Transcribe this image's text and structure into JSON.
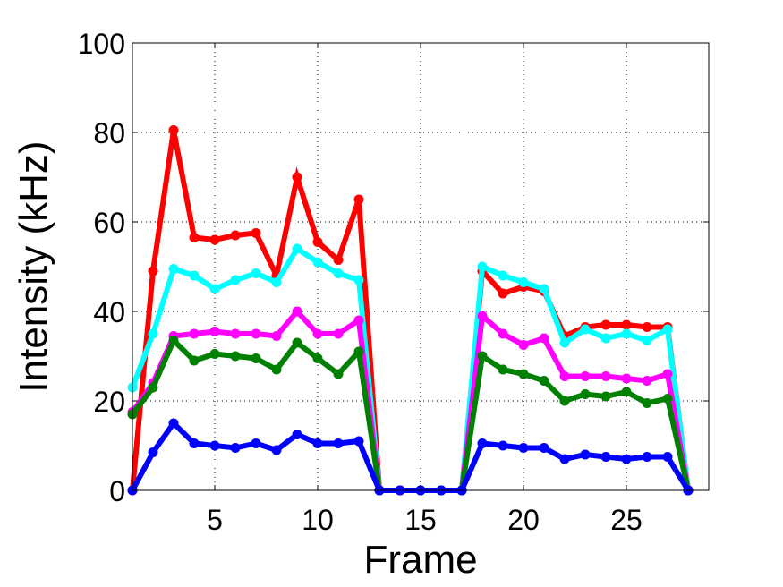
{
  "chart_data": {
    "type": "line",
    "title": "",
    "xlabel": "Frame",
    "ylabel": "Intensity (kHz)",
    "xlim": [
      1,
      29
    ],
    "ylim": [
      0,
      100
    ],
    "xticks": [
      5,
      10,
      15,
      20,
      25
    ],
    "yticks": [
      0,
      20,
      40,
      60,
      80,
      100
    ],
    "grid": true,
    "legend": "none",
    "x": [
      1,
      2,
      3,
      4,
      5,
      6,
      7,
      8,
      9,
      10,
      11,
      12,
      13,
      14,
      15,
      16,
      17,
      18,
      19,
      20,
      21,
      22,
      23,
      24,
      25,
      26,
      27,
      28
    ],
    "series": [
      {
        "color": "#ff0000",
        "values": [
          0,
          49,
          80.5,
          56.5,
          56,
          57,
          57.5,
          48,
          70,
          55.5,
          51.5,
          65,
          0,
          0,
          0,
          0,
          0,
          49,
          44,
          45.5,
          44.5,
          34.5,
          36.5,
          37,
          37,
          36.5,
          36.5,
          0
        ]
      },
      {
        "color": "#00ffff",
        "values": [
          23,
          35,
          49.5,
          48,
          45,
          47,
          48.5,
          46.5,
          54,
          51,
          48.5,
          47,
          0,
          0,
          0,
          0,
          0,
          50,
          48,
          46.5,
          45,
          33,
          36,
          34,
          35,
          33.5,
          36,
          0
        ]
      },
      {
        "color": "#ff00ff",
        "values": [
          17.5,
          24,
          34.5,
          35,
          35.5,
          35,
          35,
          34.5,
          40,
          35,
          35,
          38,
          0,
          0,
          0,
          0,
          0,
          39,
          35,
          32.5,
          34,
          25.5,
          25.5,
          25.5,
          25,
          24.5,
          26,
          0
        ]
      },
      {
        "color": "#008000",
        "values": [
          17,
          23,
          33.5,
          29,
          30.5,
          30,
          29.5,
          27,
          33,
          29.5,
          26,
          31,
          0,
          0,
          0,
          0,
          0,
          30,
          27,
          26,
          24.5,
          20,
          21.5,
          21,
          22,
          19.5,
          20.5,
          0
        ]
      },
      {
        "color": "#0000ff",
        "values": [
          0,
          8.5,
          15,
          10.5,
          10,
          9.5,
          10.5,
          9,
          12.5,
          10.5,
          10.5,
          11,
          0,
          0,
          0,
          0,
          0,
          10.5,
          10,
          9.5,
          9.5,
          7,
          8,
          7.5,
          7,
          7.5,
          7.5,
          0
        ]
      }
    ]
  }
}
